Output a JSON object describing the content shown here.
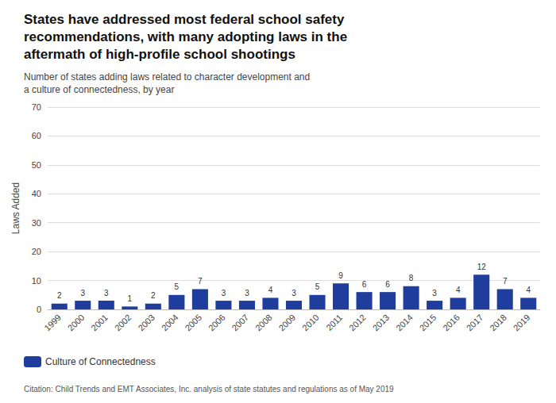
{
  "chart_data": {
    "type": "bar",
    "title": "States have addressed most federal school safety\nrecommendations, with many adopting laws in the\naftermath of high-profile school shootings",
    "subtitle": "Number of states adding laws related to character development and\na culture of connectedness, by year",
    "categories": [
      "1999",
      "2000",
      "2001",
      "2002",
      "2003",
      "2004",
      "2005",
      "2006",
      "2007",
      "2008",
      "2009",
      "2010",
      "2011",
      "2012",
      "2013",
      "2014",
      "2015",
      "2016",
      "2017",
      "2018",
      "2019"
    ],
    "series": [
      {
        "name": "Culture of Connectedness",
        "color": "#1f3d9c",
        "values": [
          2,
          3,
          3,
          1,
          2,
          5,
          7,
          3,
          3,
          4,
          3,
          5,
          9,
          6,
          6,
          8,
          3,
          4,
          12,
          7,
          4
        ]
      }
    ],
    "ylabel": "Laws Added",
    "ylim": [
      0,
      70
    ],
    "yticks": [
      0,
      10,
      20,
      30,
      40,
      50,
      60,
      70
    ],
    "grid": true,
    "data_labels": true,
    "legend": "lower left",
    "annotations": [
      "Citation: Child Trends and EMT Associates, Inc. analysis of state statutes and regulations as of May 2019"
    ]
  }
}
